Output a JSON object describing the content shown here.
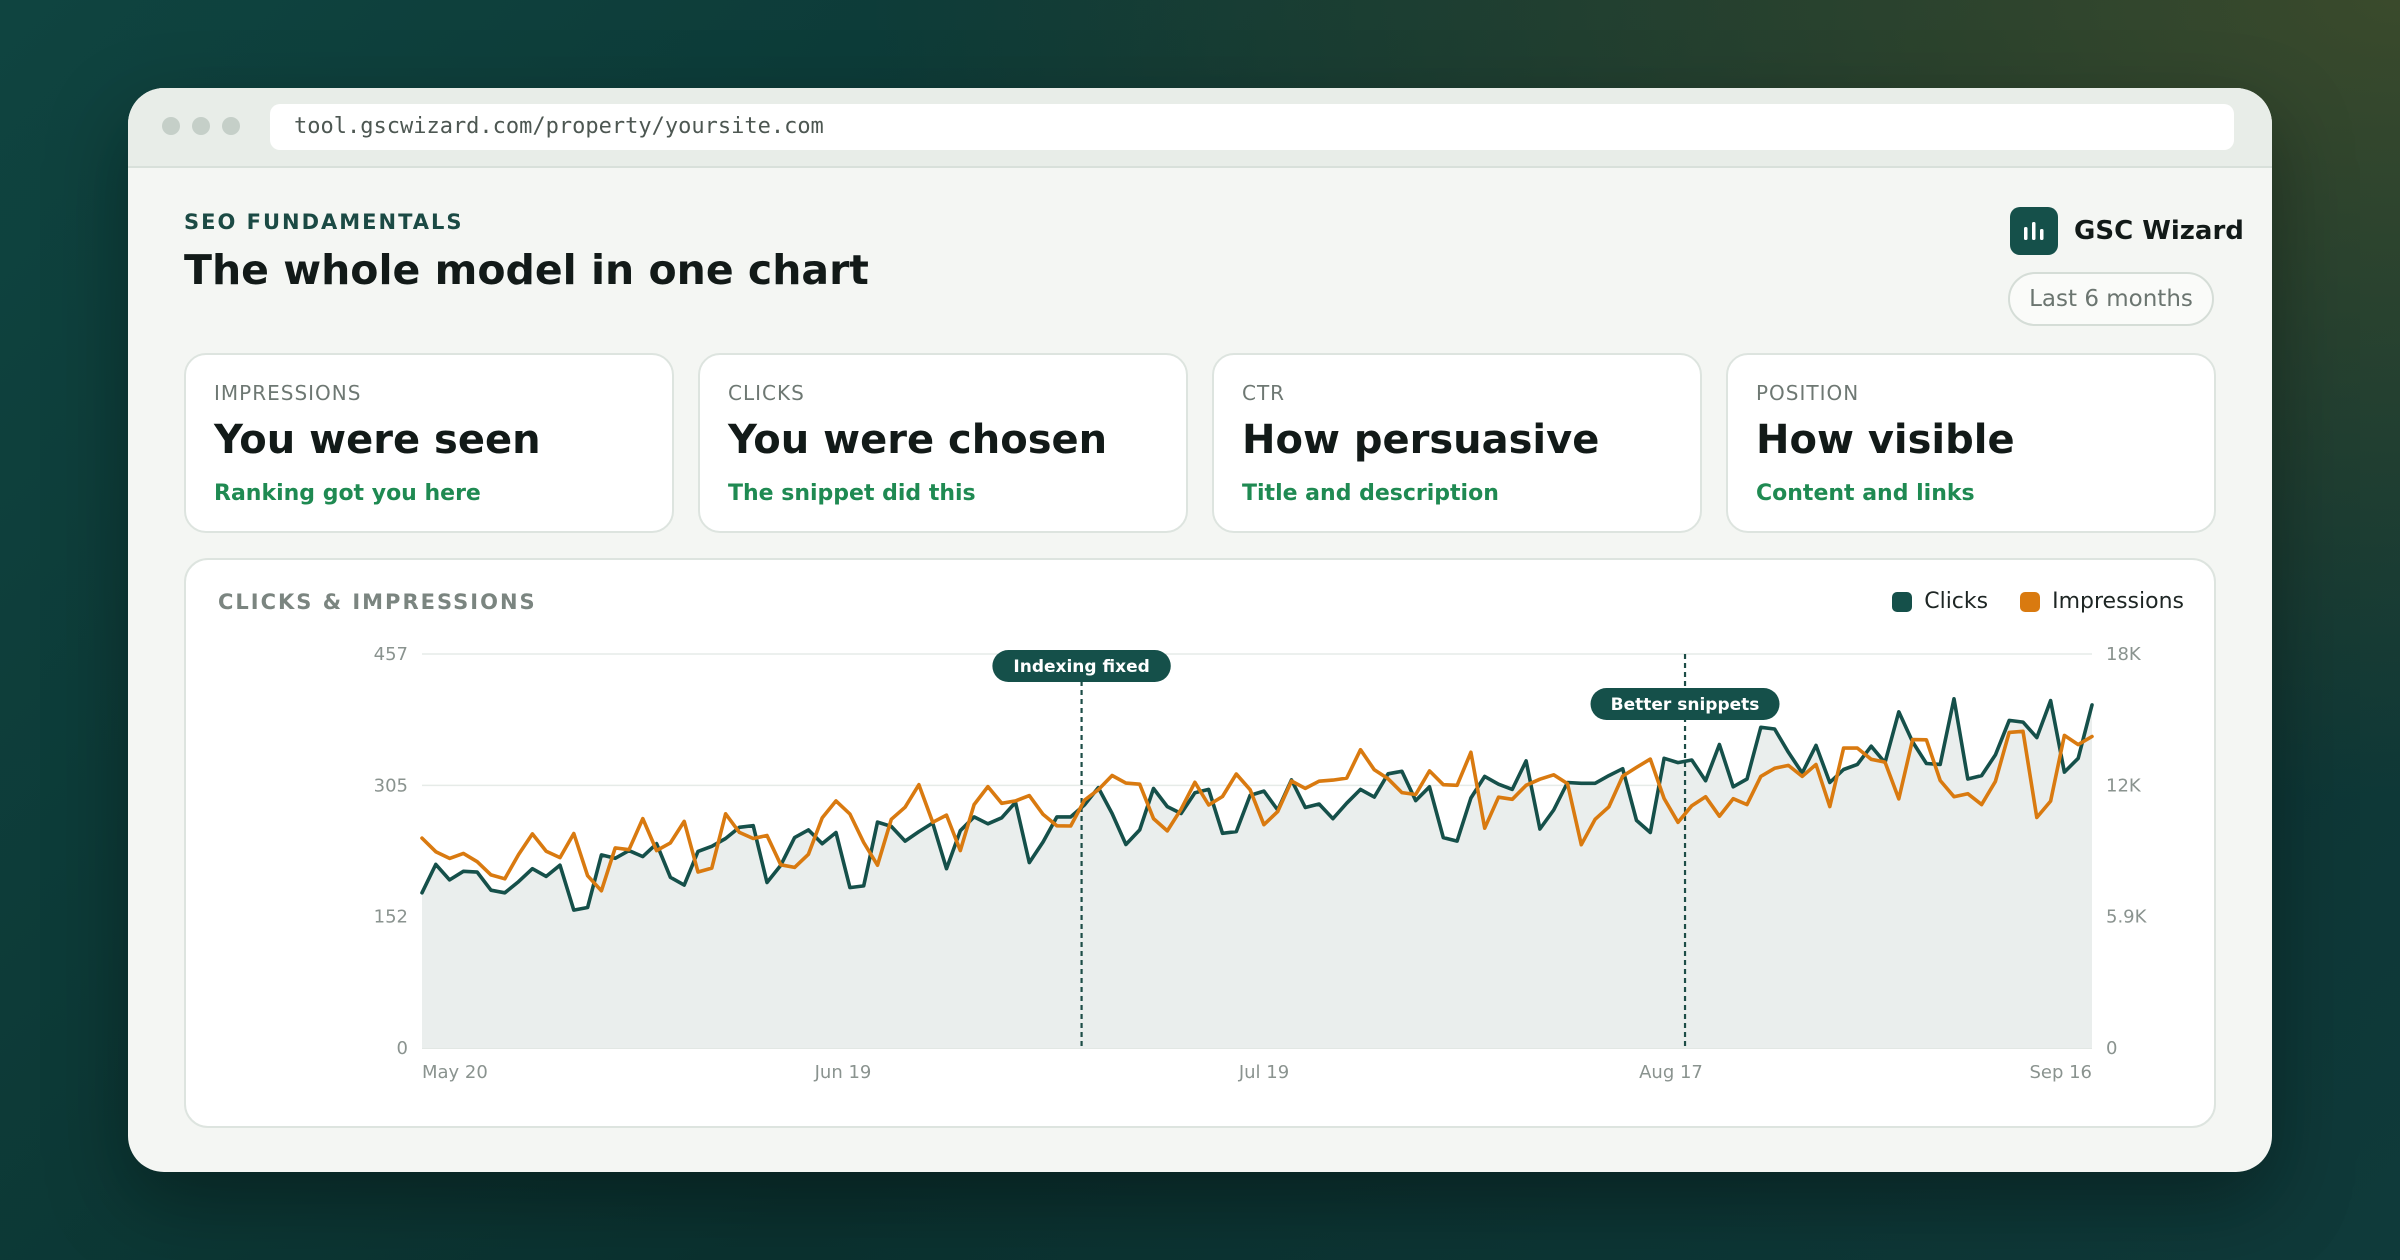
{
  "browser": {
    "url": "tool.gscwizard.com/property/yoursite.com"
  },
  "header": {
    "eyebrow": "SEO FUNDAMENTALS",
    "title": "The whole model in one chart",
    "brand_name": "GSC Wizard",
    "range_label": "Last 6 months"
  },
  "cards": [
    {
      "label": "IMPRESSIONS",
      "value": "You were seen",
      "sub": "Ranking got you here"
    },
    {
      "label": "CLICKS",
      "value": "You were chosen",
      "sub": "The snippet did this"
    },
    {
      "label": "CTR",
      "value": "How persuasive",
      "sub": "Title and description"
    },
    {
      "label": "POSITION",
      "value": "How visible",
      "sub": "Content and links"
    }
  ],
  "colors": {
    "clicks": "#15504a",
    "impressions": "#d97a10",
    "accent_green": "#1f8a52"
  },
  "chart_data": {
    "type": "line",
    "title": "CLICKS & IMPRESSIONS",
    "x_tick_labels": [
      "May 20",
      "Jun 19",
      "Jul 19",
      "Aug 17",
      "Sep 16"
    ],
    "x_start": "May 20",
    "x_end": "Sep 16",
    "y_left_ticks": [
      "0",
      "152",
      "305",
      "457"
    ],
    "y_right_ticks": [
      "0",
      "5.9K",
      "12K",
      "18K"
    ],
    "ylim_left": [
      0,
      457
    ],
    "ylim_right": [
      0,
      18000
    ],
    "grid": true,
    "legend_position": "top-right",
    "annotations": [
      {
        "label": "Indexing fixed",
        "date": "Jul 6"
      },
      {
        "label": "Better snippets",
        "date": "Aug 18"
      }
    ],
    "series": [
      {
        "name": "Clicks",
        "axis": "left",
        "values": [
          180,
          213,
          195,
          205,
          204,
          183,
          180,
          193,
          208,
          199,
          212,
          160,
          163,
          224,
          220,
          229,
          222,
          237,
          198,
          189,
          228,
          234,
          243,
          256,
          258,
          192,
          212,
          244,
          253,
          237,
          250,
          186,
          188,
          262,
          257,
          240,
          251,
          261,
          208,
          252,
          268,
          260,
          267,
          285,
          215,
          239,
          268,
          268,
          282,
          302,
          272,
          236,
          253,
          301,
          280,
          272,
          296,
          300,
          249,
          251,
          293,
          298,
          276,
          311,
          279,
          283,
          266,
          284,
          300,
          291,
          318,
          321,
          287,
          303,
          244,
          240,
          290,
          315,
          306,
          300,
          333,
          254,
          276,
          308,
          307,
          307,
          316,
          324,
          264,
          250,
          336,
          331,
          334,
          310,
          352,
          303,
          312,
          372,
          370,
          343,
          319,
          351,
          308,
          323,
          329,
          350,
          331,
          390,
          355,
          330,
          329,
          405,
          312,
          316,
          340,
          380,
          378,
          360,
          403,
          320,
          336,
          398
        ]
      },
      {
        "name": "Impressions",
        "axis": "right",
        "values": [
          9590,
          8970,
          8660,
          8890,
          8510,
          7910,
          7730,
          8840,
          9780,
          8990,
          8700,
          9800,
          7870,
          7180,
          9140,
          9060,
          10480,
          9020,
          9370,
          10350,
          8040,
          8220,
          10700,
          9850,
          9570,
          9710,
          8370,
          8250,
          8850,
          10510,
          11290,
          10690,
          9390,
          8350,
          10450,
          11000,
          12030,
          10310,
          10640,
          9020,
          11120,
          11940,
          11180,
          11290,
          11530,
          10670,
          10150,
          10140,
          11320,
          11800,
          12450,
          12100,
          12050,
          10480,
          9920,
          10910,
          12140,
          11100,
          11490,
          12520,
          11800,
          10200,
          10800,
          12200,
          11860,
          12190,
          12240,
          12330,
          13630,
          12710,
          12300,
          11670,
          11580,
          12660,
          12030,
          12000,
          13510,
          10040,
          11460,
          11360,
          12000,
          12280,
          12480,
          12080,
          9290,
          10450,
          11020,
          12420,
          12820,
          13200,
          11400,
          10310,
          11070,
          11480,
          10590,
          11390,
          11120,
          12410,
          12780,
          12910,
          12410,
          12950,
          11030,
          13700,
          13700,
          13190,
          13060,
          11380,
          14090,
          14080,
          12220,
          11480,
          11620,
          11120,
          12180,
          14420,
          14470,
          10530,
          11280,
          14280,
          13860,
          14230
        ]
      }
    ]
  }
}
